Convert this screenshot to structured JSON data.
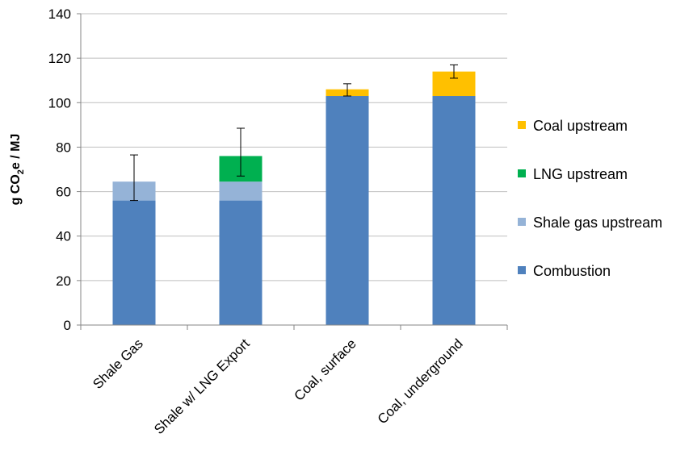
{
  "chart_data": {
    "type": "bar",
    "stacked": true,
    "categories": [
      "Shale Gas",
      "Shale w/ LNG Export",
      "Coal, surface",
      "Coal, underground"
    ],
    "series": [
      {
        "name": "Combustion",
        "color": "#4F81BD",
        "values": [
          56,
          56,
          103,
          103
        ]
      },
      {
        "name": "Shale gas upstream",
        "color": "#95B3D7",
        "values": [
          8.5,
          8.5,
          0,
          0
        ]
      },
      {
        "name": "LNG upstream",
        "color": "#00B050",
        "values": [
          0,
          11.5,
          0,
          0
        ]
      },
      {
        "name": "Coal upstream",
        "color": "#FFC000",
        "values": [
          0,
          0,
          3,
          11
        ]
      }
    ],
    "error_bars": [
      {
        "low": 56,
        "high": 76.5
      },
      {
        "low": 67,
        "high": 88.5
      },
      {
        "low": 103,
        "high": 108.5
      },
      {
        "low": 111,
        "high": 117
      }
    ],
    "ylabel_prefix": "g CO",
    "ylabel_sub": "2",
    "ylabel_suffix": "e / MJ",
    "ylim": [
      0,
      140
    ],
    "yticks": [
      "0",
      "20",
      "40",
      "60",
      "80",
      "100",
      "120",
      "140"
    ],
    "grid": true,
    "legend_position": "right",
    "legend_order": [
      "Coal upstream",
      "LNG upstream",
      "Shale gas upstream",
      "Combustion"
    ]
  }
}
